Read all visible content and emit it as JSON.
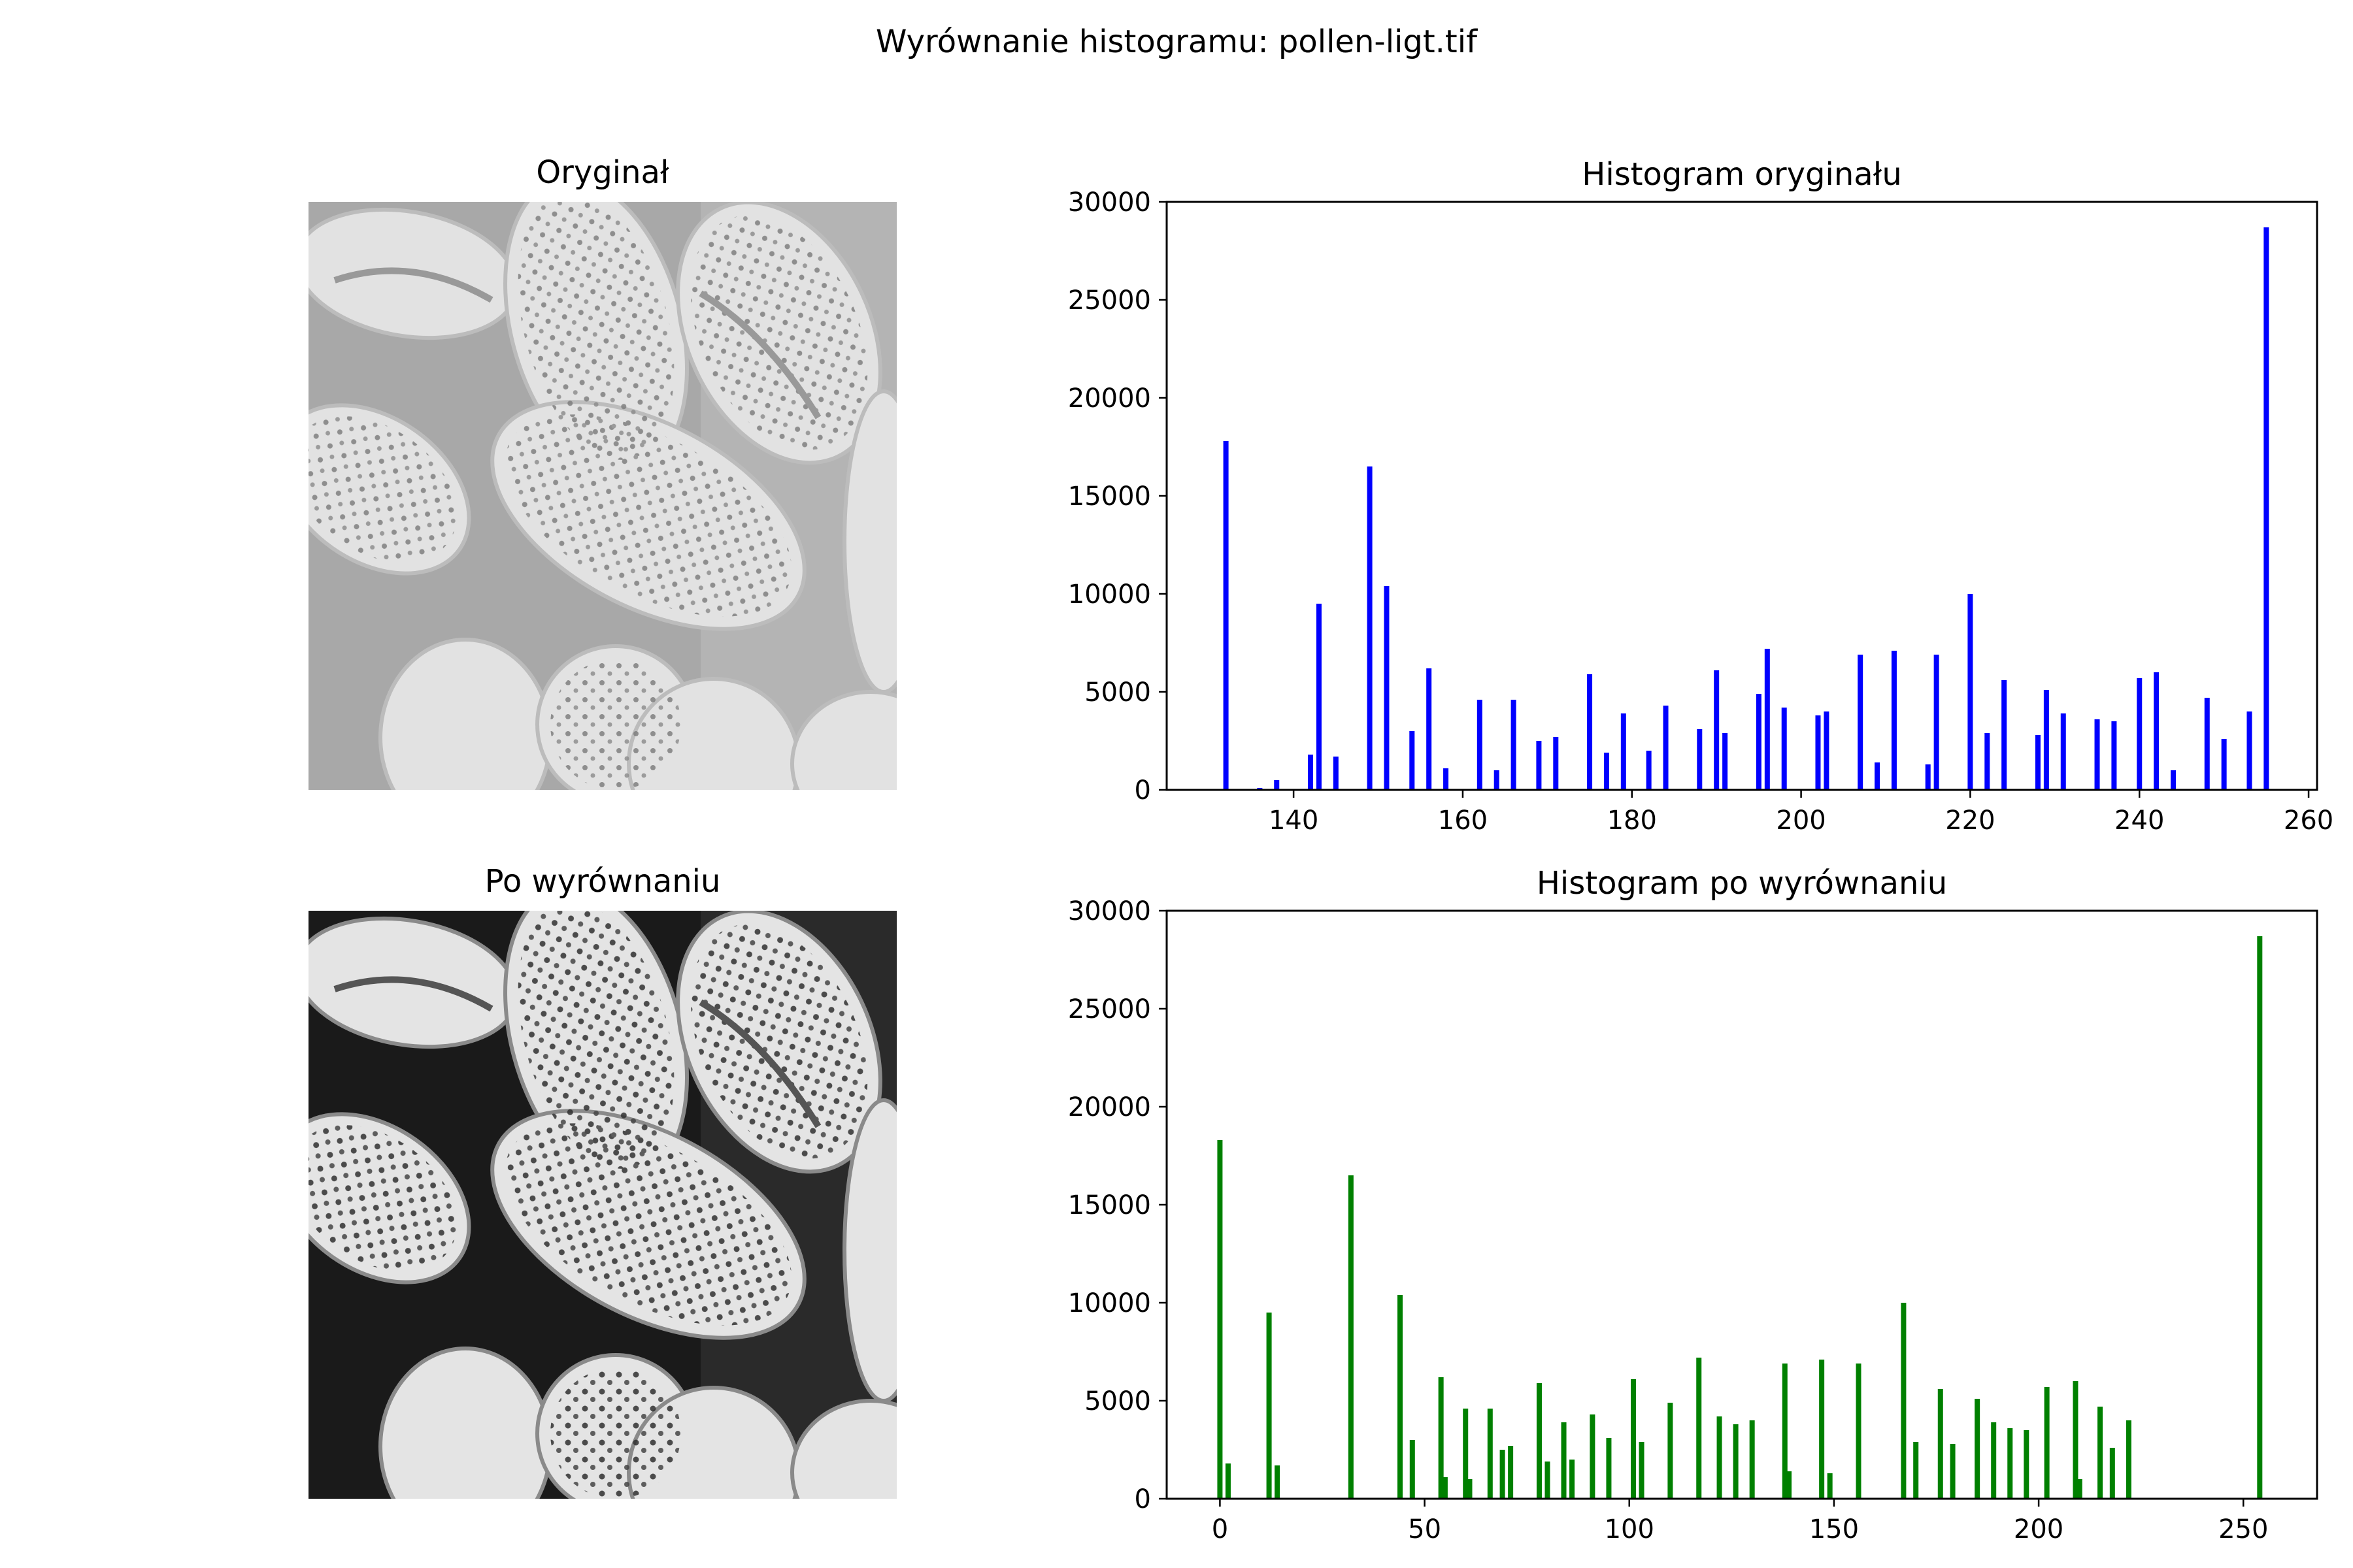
{
  "suptitle": "Wyrównanie histogramu: pollen-ligt.tif",
  "images": {
    "original_title": "Oryginał",
    "equalized_title": "Po wyrównaniu"
  },
  "colors": {
    "original_bars": "#0000ff",
    "equalized_bars": "#008000"
  },
  "chart_data": [
    {
      "type": "bar",
      "title": "Histogram oryginału",
      "xlabel": "",
      "ylabel": "",
      "xlim": [
        125,
        261
      ],
      "ylim": [
        0,
        30000
      ],
      "xticks": [
        140,
        160,
        180,
        200,
        220,
        240,
        260
      ],
      "yticks": [
        0,
        5000,
        10000,
        15000,
        20000,
        25000,
        30000
      ],
      "color": "#0000ff",
      "grid": false,
      "x": [
        132,
        136,
        138,
        142,
        143,
        145,
        149,
        151,
        154,
        156,
        158,
        162,
        164,
        166,
        169,
        171,
        175,
        177,
        179,
        182,
        184,
        188,
        190,
        191,
        195,
        196,
        198,
        202,
        203,
        207,
        209,
        211,
        215,
        216,
        220,
        222,
        224,
        228,
        229,
        231,
        235,
        237,
        240,
        242,
        244,
        248,
        250,
        253,
        255
      ],
      "values": [
        17800,
        100,
        500,
        1800,
        9500,
        1700,
        16500,
        10400,
        3000,
        6200,
        1100,
        4600,
        1000,
        4600,
        2500,
        2700,
        5900,
        1900,
        3900,
        2000,
        4300,
        3100,
        6100,
        2900,
        4900,
        7200,
        4200,
        3800,
        4000,
        6900,
        1400,
        7100,
        1300,
        6900,
        10000,
        2900,
        5600,
        2800,
        5100,
        3900,
        3600,
        3500,
        5700,
        6000,
        1000,
        4700,
        2600,
        4000,
        28700
      ]
    },
    {
      "type": "bar",
      "title": "Histogram po wyrównaniu",
      "xlabel": "",
      "ylabel": "",
      "xlim": [
        -13,
        268
      ],
      "ylim": [
        0,
        30000
      ],
      "xticks": [
        0,
        50,
        100,
        150,
        200,
        250
      ],
      "yticks": [
        0,
        5000,
        10000,
        15000,
        20000,
        25000,
        30000
      ],
      "color": "#008000",
      "grid": false,
      "x": [
        0,
        2,
        12,
        14,
        32,
        44,
        47,
        54,
        55,
        60,
        61,
        66,
        69,
        71,
        78,
        80,
        84,
        86,
        91,
        95,
        101,
        103,
        110,
        117,
        122,
        126,
        130,
        138,
        139,
        147,
        149,
        156,
        167,
        170,
        176,
        179,
        185,
        189,
        193,
        197,
        202,
        209,
        210,
        215,
        218,
        222,
        254
      ],
      "values": [
        18300,
        1800,
        9500,
        1700,
        16500,
        10400,
        3000,
        6200,
        1100,
        4600,
        1000,
        4600,
        2500,
        2700,
        5900,
        1900,
        3900,
        2000,
        4300,
        3100,
        6100,
        2900,
        4900,
        7200,
        4200,
        3800,
        4000,
        6900,
        1400,
        7100,
        1300,
        6900,
        10000,
        2900,
        5600,
        2800,
        5100,
        3900,
        3600,
        3500,
        5700,
        6000,
        1000,
        4700,
        2600,
        4000,
        28700
      ]
    }
  ]
}
